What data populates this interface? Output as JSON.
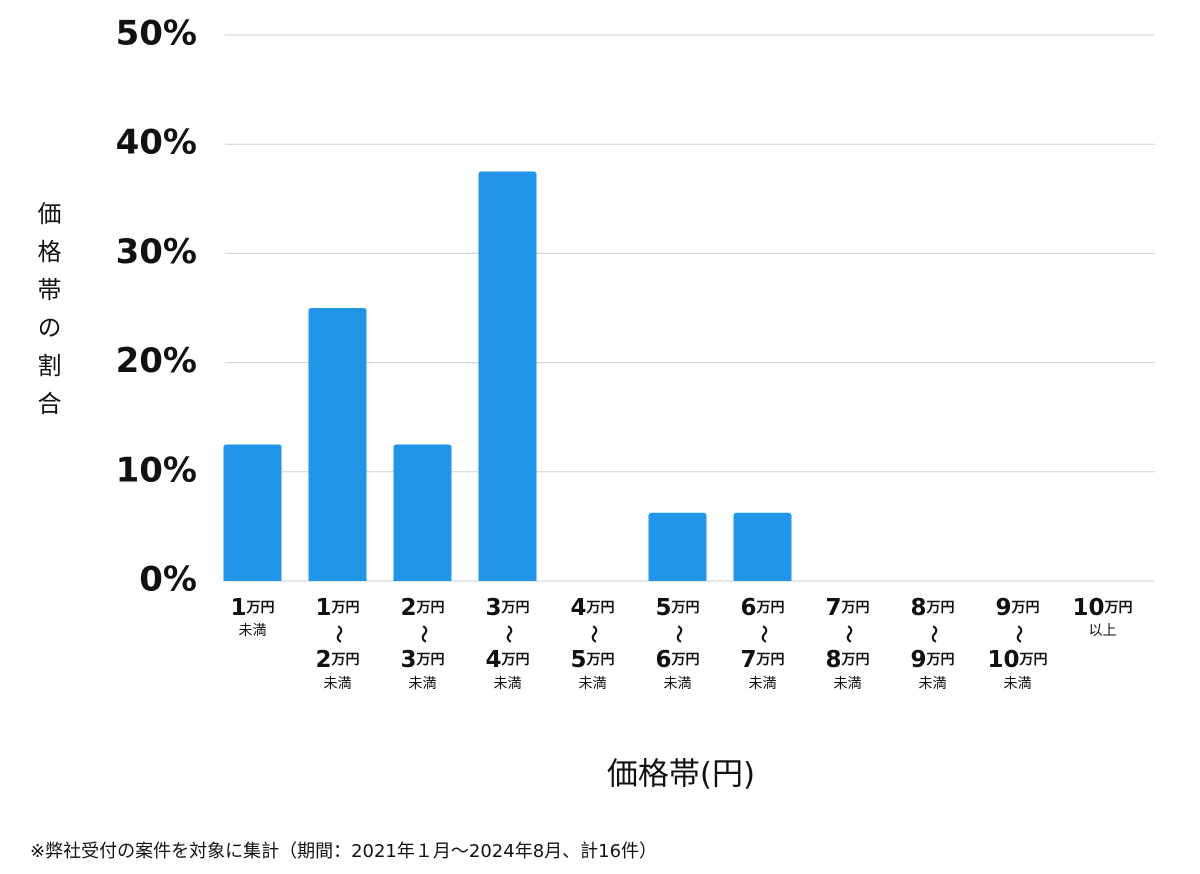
{
  "chart_data": {
    "type": "bar",
    "y_label": "価格帯の割合",
    "x_label": "価格帯(円)",
    "footnote": "※弊社受付の案件を対象に集計（期間：2021年１月〜2024年8月、計16件）",
    "categories": [
      [
        "1万円",
        "未満"
      ],
      [
        "1万円",
        "〜",
        "2万円",
        "未満"
      ],
      [
        "2万円",
        "〜",
        "3万円",
        "未満"
      ],
      [
        "3万円",
        "〜",
        "4万円",
        "未満"
      ],
      [
        "4万円",
        "〜",
        "5万円",
        "未満"
      ],
      [
        "5万円",
        "〜",
        "6万円",
        "未満"
      ],
      [
        "6万円",
        "〜",
        "7万円",
        "未満"
      ],
      [
        "7万円",
        "〜",
        "8万円",
        "未満"
      ],
      [
        "8万円",
        "〜",
        "9万円",
        "未満"
      ],
      [
        "9万円",
        "〜",
        "10万円",
        "未満"
      ],
      [
        "10万円",
        "以上"
      ]
    ],
    "values": [
      12.5,
      25,
      12.5,
      37.5,
      0,
      6.25,
      6.25,
      0,
      0,
      0,
      0
    ],
    "color": "#2196e8",
    "ylim": [
      0,
      50
    ],
    "yticks": [
      {
        "value": 0,
        "label": "0%"
      },
      {
        "value": 10,
        "label": "10%"
      },
      {
        "value": 20,
        "label": "20%"
      },
      {
        "value": 30,
        "label": "30%"
      },
      {
        "value": 40,
        "label": "40%"
      },
      {
        "value": 50,
        "label": "50%"
      }
    ],
    "grid": true
  }
}
